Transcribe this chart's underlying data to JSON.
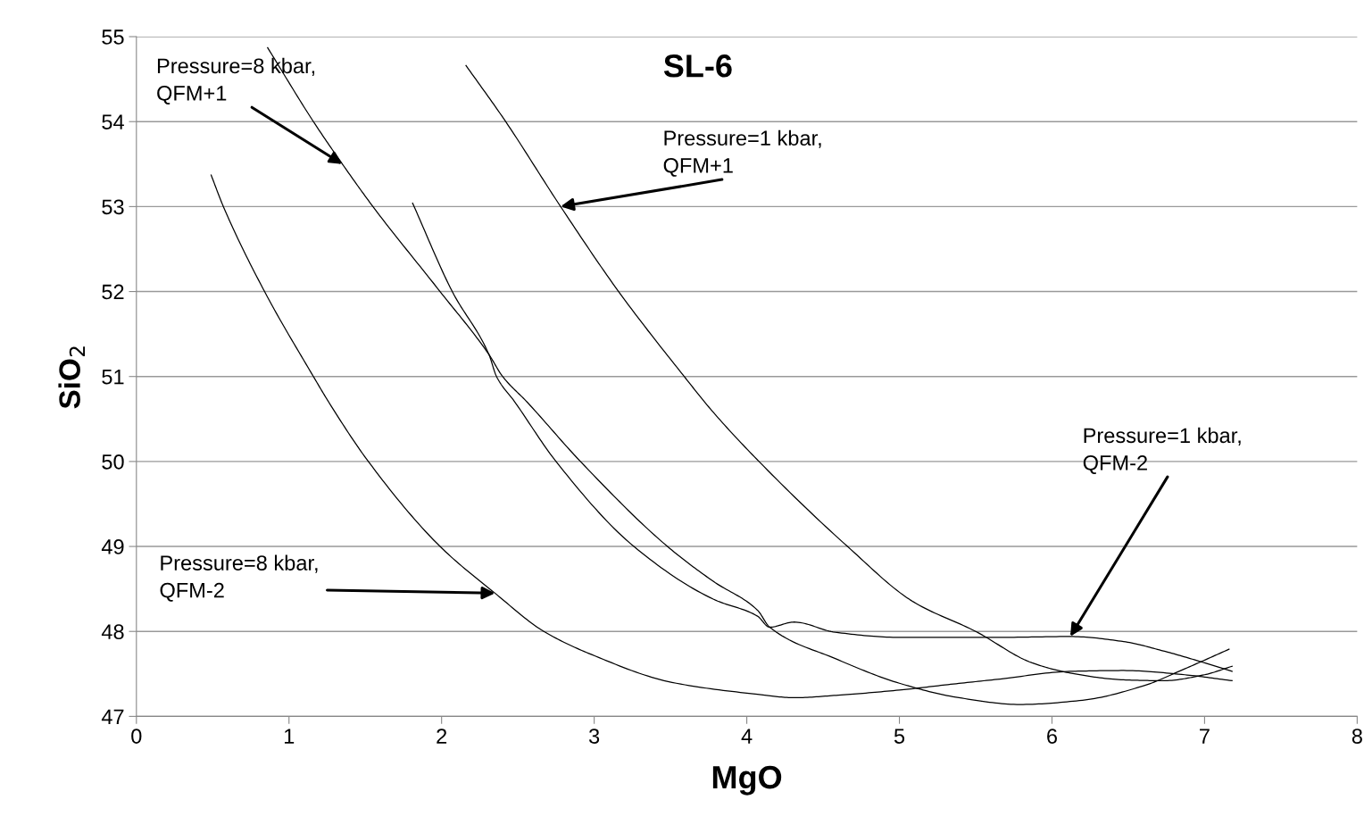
{
  "chart_data": {
    "type": "line",
    "title": "SL-6",
    "xlabel": "MgO",
    "ylabel": "SiO$_{2}$",
    "xlim": [
      0,
      8
    ],
    "xticks": [
      0,
      1,
      2,
      3,
      4,
      5,
      6,
      7,
      8
    ],
    "ylim": [
      47,
      55
    ],
    "yticks": [
      47,
      48,
      49,
      50,
      51,
      52,
      53,
      54,
      55
    ],
    "grid": "y",
    "legend": false,
    "marker": "none",
    "line_style": "solid",
    "series": [
      {
        "color": "#000000",
        "x": [
          0.49,
          0.57,
          0.84,
          1.16,
          1.26,
          1.52,
          1.99,
          2.35,
          2.67,
          2.98,
          3.51,
          4.07,
          4.31,
          4.6,
          5.0,
          5.3,
          5.66,
          6.12,
          6.47,
          6.87,
          7.18
        ],
        "values": [
          53.37,
          53.0,
          52.0,
          51.0,
          50.7,
          50.0,
          49.0,
          48.45,
          48.0,
          47.73,
          47.4,
          47.26,
          47.22,
          47.25,
          47.31,
          47.37,
          47.44,
          47.53,
          47.54,
          47.49,
          47.42
        ]
      },
      {
        "color": "#000000",
        "x": [
          0.86,
          1.16,
          1.35,
          1.55,
          1.99,
          2.31,
          2.4,
          2.56,
          2.91,
          3.48,
          3.78,
          4.07,
          4.15,
          4.58,
          5.0,
          5.39,
          5.79,
          6.2,
          6.6,
          6.87,
          7.16
        ],
        "values": [
          54.87,
          54.0,
          53.5,
          53.0,
          52.0,
          51.26,
          51.0,
          50.7,
          50.0,
          49.0,
          48.59,
          48.25,
          48.05,
          47.68,
          47.39,
          47.22,
          47.14,
          47.19,
          47.36,
          47.56,
          47.79
        ]
      },
      {
        "color": "#000000",
        "x": [
          2.16,
          2.42,
          2.78,
          3.16,
          3.59,
          3.78,
          4.08,
          4.66,
          5.09,
          5.5,
          5.87,
          6.12,
          6.47,
          6.73,
          7.0,
          7.18
        ],
        "values": [
          54.66,
          54.0,
          53.0,
          52.0,
          51.0,
          50.58,
          50.0,
          49.0,
          48.35,
          48.0,
          47.63,
          47.51,
          47.43,
          47.42,
          47.49,
          47.59
        ]
      },
      {
        "color": "#000000",
        "x": [
          1.81,
          2.07,
          2.31,
          2.36,
          2.48,
          2.75,
          3.26,
          3.78,
          4.07,
          4.15,
          4.31,
          4.58,
          5.0,
          5.66,
          6.12,
          6.47,
          6.73,
          7.0,
          7.18
        ],
        "values": [
          53.04,
          52.0,
          51.26,
          51.0,
          50.7,
          50.0,
          49.0,
          48.38,
          48.18,
          48.05,
          48.11,
          47.99,
          47.93,
          47.93,
          47.94,
          47.88,
          47.77,
          47.63,
          47.53
        ]
      }
    ],
    "annotations": [
      {
        "text": "Pressure=8 kbar,\nQFM+1",
        "x": 1.35,
        "y": 53.5
      },
      {
        "text": "Pressure=1 kbar,\nQFM+1",
        "x": 2.78,
        "y": 53.0
      },
      {
        "text": "Pressure=1 kbar,\nQFM-2",
        "x": 6.12,
        "y": 47.94
      },
      {
        "text": "Pressure=8 kbar,\nQFM-2",
        "x": 2.35,
        "y": 48.45
      }
    ]
  }
}
